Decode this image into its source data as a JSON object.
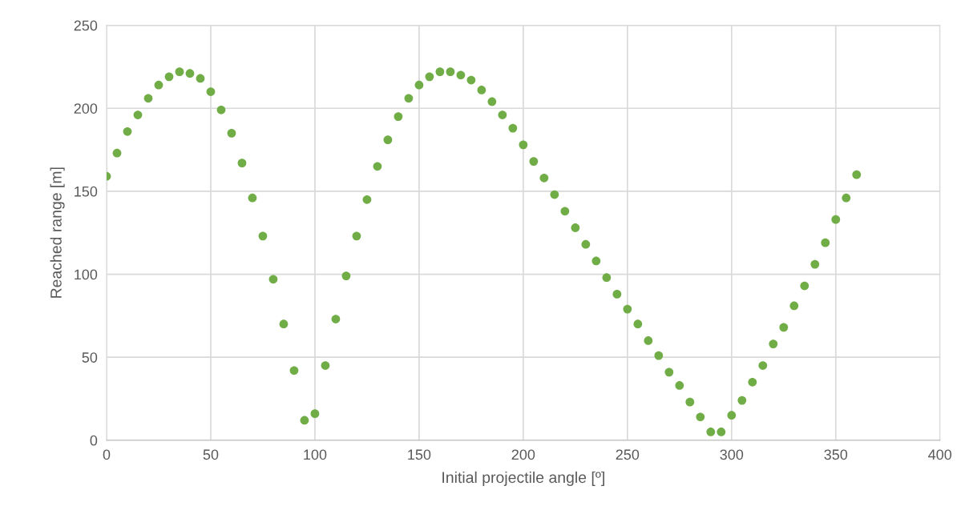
{
  "chart_data": {
    "type": "scatter",
    "xlabel": "Initial projectile angle [º]",
    "ylabel": "Reached range [m]",
    "x": [
      0,
      5,
      10,
      15,
      20,
      25,
      30,
      35,
      40,
      45,
      50,
      55,
      60,
      65,
      70,
      75,
      80,
      85,
      90,
      95,
      100,
      105,
      110,
      115,
      120,
      125,
      130,
      135,
      140,
      145,
      150,
      155,
      160,
      165,
      170,
      175,
      180,
      185,
      190,
      195,
      200,
      205,
      210,
      215,
      220,
      225,
      230,
      235,
      240,
      245,
      250,
      255,
      260,
      265,
      270,
      275,
      280,
      285,
      290,
      295,
      300,
      305,
      310,
      315,
      320,
      325,
      330,
      335,
      340,
      345,
      350,
      355,
      360
    ],
    "values": [
      159,
      173,
      186,
      196,
      206,
      214,
      219,
      222,
      221,
      218,
      210,
      199,
      185,
      167,
      146,
      123,
      97,
      70,
      42,
      12,
      16,
      45,
      73,
      99,
      123,
      145,
      165,
      181,
      195,
      206,
      214,
      219,
      222,
      222,
      220,
      217,
      211,
      204,
      196,
      188,
      178,
      168,
      158,
      148,
      138,
      128,
      118,
      108,
      98,
      88,
      79,
      70,
      60,
      51,
      41,
      33,
      23,
      14,
      5,
      5,
      15,
      24,
      35,
      45,
      58,
      68,
      81,
      93,
      106,
      119,
      133,
      146,
      160
    ],
    "color": "#70ad47",
    "marker": "circle",
    "xlim": [
      0,
      400
    ],
    "xticks": [
      0,
      50,
      100,
      150,
      200,
      250,
      300,
      350,
      400
    ],
    "ylim": [
      0,
      250
    ],
    "yticks": [
      0,
      50,
      100,
      150,
      200,
      250
    ],
    "grid": true
  }
}
